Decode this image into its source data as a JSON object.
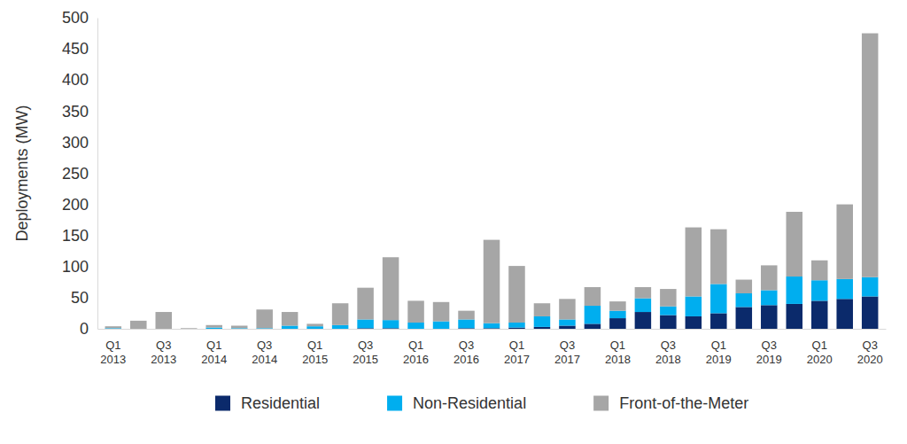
{
  "chart_data": {
    "type": "bar",
    "stacked": true,
    "grid": false,
    "legend": "bottom",
    "y_label": "Deployments (MW)",
    "categories": [
      "Q1 2013",
      null,
      "Q3 2013",
      null,
      "Q1 2014",
      null,
      "Q3 2014",
      null,
      "Q1 2015",
      null,
      "Q3 2015",
      null,
      "Q1 2016",
      null,
      "Q3 2016",
      null,
      "Q1 2017",
      null,
      "Q3 2017",
      null,
      "Q1 2018",
      null,
      "Q3 2018",
      null,
      "Q1 2019",
      null,
      "Q3 2019",
      null,
      "Q1 2020",
      null,
      "Q3 2020"
    ],
    "series": [
      {
        "name": "Residential",
        "color": "#0b2a6b",
        "values": [
          0,
          0,
          0,
          0,
          0,
          0,
          0,
          0,
          0,
          0,
          1,
          1,
          0,
          0,
          1,
          1,
          2,
          3,
          5,
          8,
          17,
          27,
          22,
          20,
          25,
          35,
          38,
          40,
          45,
          48,
          52
        ]
      },
      {
        "name": "Non-Residential",
        "color": "#00aeef",
        "values": [
          1,
          0,
          0,
          0,
          2,
          1,
          1,
          5,
          4,
          6,
          14,
          13,
          10,
          12,
          14,
          8,
          8,
          17,
          10,
          29,
          12,
          22,
          14,
          32,
          47,
          22,
          24,
          44,
          33,
          32,
          31
        ]
      },
      {
        "name": "Front-of-the-Meter",
        "color": "#a6a6a6",
        "values": [
          3,
          13,
          27,
          1,
          4,
          4,
          30,
          22,
          4,
          35,
          51,
          101,
          35,
          31,
          14,
          134,
          91,
          21,
          33,
          30,
          15,
          18,
          28,
          111,
          88,
          22,
          40,
          104,
          32,
          120,
          392
        ]
      }
    ],
    "ylim": [
      0,
      500
    ],
    "yticks": [
      0,
      50,
      100,
      150,
      200,
      250,
      300,
      350,
      400,
      450,
      500
    ]
  }
}
